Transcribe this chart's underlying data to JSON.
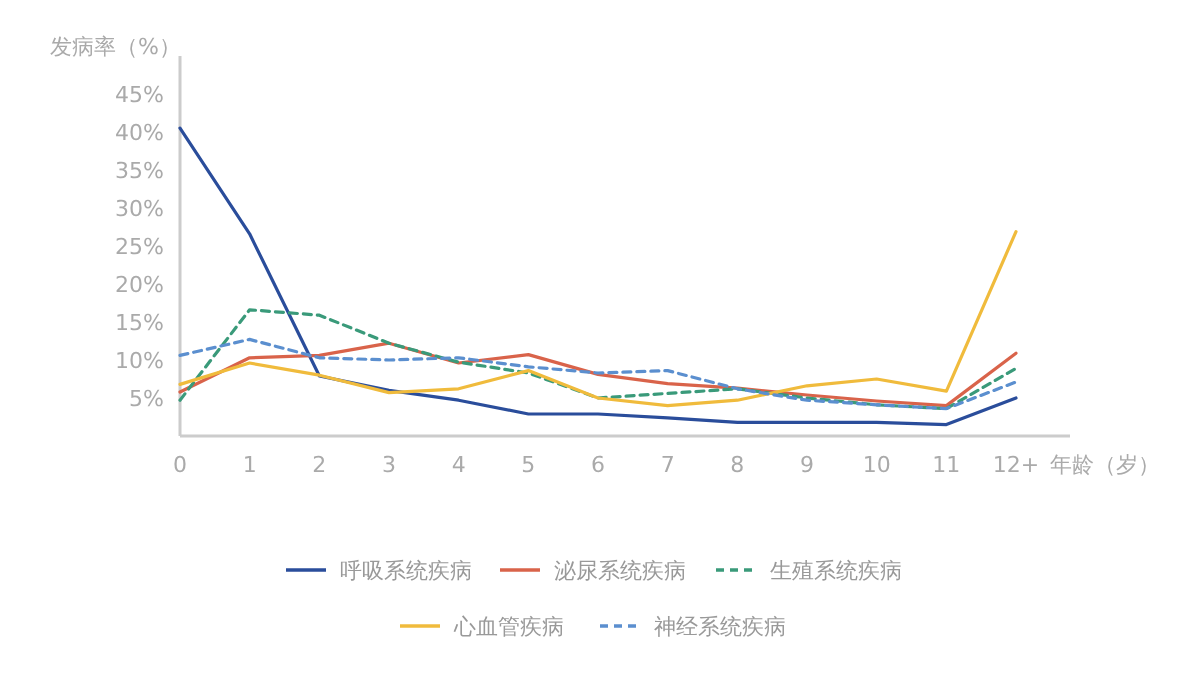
{
  "chart_data": {
    "type": "line",
    "ylabel": "发病率（%）",
    "xlabel": "年龄（岁）",
    "categories": [
      "0",
      "1",
      "2",
      "3",
      "4",
      "5",
      "6",
      "7",
      "8",
      "9",
      "10",
      "11",
      "12+"
    ],
    "ylim": [
      0,
      50
    ],
    "yticks": [
      {
        "value": 5,
        "label": "5%"
      },
      {
        "value": 10,
        "label": "10%"
      },
      {
        "value": 15,
        "label": "15%"
      },
      {
        "value": 20,
        "label": "20%"
      },
      {
        "value": 25,
        "label": "25%"
      },
      {
        "value": 30,
        "label": "30%"
      },
      {
        "value": 35,
        "label": "35%"
      },
      {
        "value": 40,
        "label": "40%"
      },
      {
        "value": 45,
        "label": "45%"
      }
    ],
    "grid": false,
    "legend": "bottom",
    "marker": "none",
    "series": [
      {
        "name": "呼吸系统疾病",
        "color": "#2a4d9b",
        "line_style": "solid",
        "values": [
          40.5,
          26.6,
          7.9,
          6.0,
          4.7,
          2.9,
          2.9,
          2.4,
          1.8,
          1.8,
          1.8,
          1.5,
          5.0
        ]
      },
      {
        "name": "泌尿系统疾病",
        "color": "#d9634a",
        "line_style": "solid",
        "values": [
          5.8,
          10.3,
          10.6,
          12.2,
          9.6,
          10.7,
          8.1,
          6.9,
          6.3,
          5.4,
          4.6,
          4.0,
          10.9
        ]
      },
      {
        "name": "生殖系统疾病",
        "color": "#3a9a7a",
        "line_style": "dashed",
        "values": [
          4.7,
          16.6,
          15.9,
          12.2,
          9.7,
          8.3,
          5.0,
          5.6,
          6.2,
          5.0,
          4.1,
          3.6,
          8.9
        ]
      },
      {
        "name": "心血管疾病",
        "color": "#f0bb3c",
        "line_style": "solid",
        "values": [
          6.8,
          9.6,
          8.0,
          5.7,
          6.2,
          8.6,
          5.0,
          4.0,
          4.7,
          6.6,
          7.5,
          5.9,
          26.9
        ]
      },
      {
        "name": "神经系统疾病",
        "color": "#5b8fcf",
        "line_style": "dashed",
        "values": [
          10.6,
          12.7,
          10.3,
          10.0,
          10.3,
          9.1,
          8.3,
          8.6,
          6.2,
          4.7,
          4.1,
          3.6,
          7.1
        ]
      }
    ]
  }
}
